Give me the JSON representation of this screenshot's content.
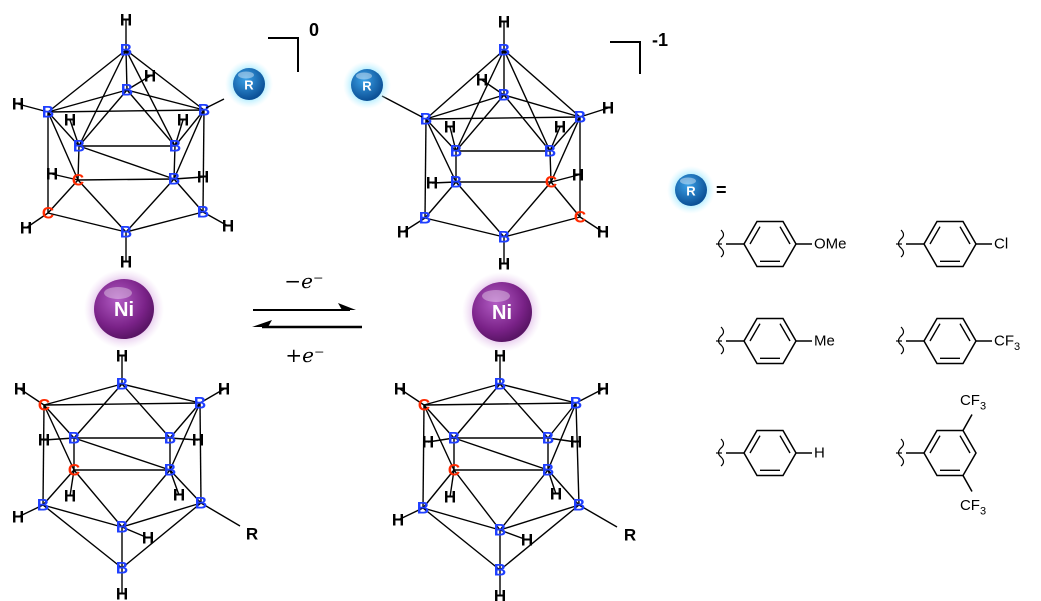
{
  "labels": {
    "boron": "B",
    "carbon": "C",
    "hydrogen": "H",
    "nickel": "Ni",
    "substituent": "R",
    "equals": "=",
    "charge_left": "0",
    "charge_right": "-1",
    "oxidation": "−e⁻",
    "reduction": "+e⁻"
  },
  "substituents": [
    {
      "group": "OMe"
    },
    {
      "group": "Cl"
    },
    {
      "group": "Me"
    },
    {
      "group": "CF3"
    },
    {
      "group": "H"
    },
    {
      "group_top": "CF3",
      "group_bottom": "CF3"
    }
  ],
  "colors": {
    "boron": "#1f3fff",
    "carbon": "#ff2a00",
    "hydrogen": "#000000",
    "nickel": "#8e2c9e",
    "nickel_glow": "#c98ad6",
    "r_ball": "#1466b8",
    "r_glow": "#7fe0ff"
  }
}
